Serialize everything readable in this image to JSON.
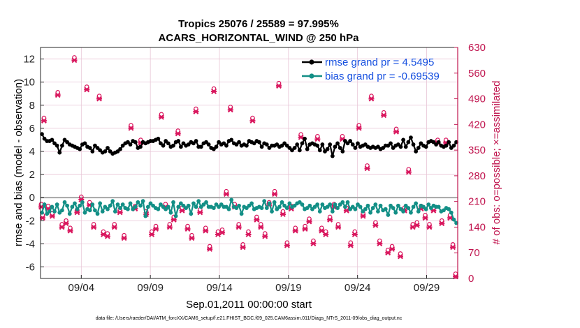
{
  "chart_data": {
    "type": "line",
    "title": "Tropics 25076 / 25589 = 97.995%",
    "subtitle": "ACARS_HORIZONTAL_WIND @ 250 hPa",
    "xlabel": "Sep.01,2011 00:00:00 start",
    "ylabel_left": "rmse and bias (model - observation)",
    "ylabel_right": "# of obs: o=possible; ×=assimilated",
    "footer": "data file: /Users/raeder/DAI/ATM_forcXX/CAM6_setup/f.e21.FHIST_BGC.f09_025.CAM6assim.011/Diags_NTrS_2011-09/obs_diag_output.nc",
    "xlim": [
      0.55,
      30.75
    ],
    "ylim_left": [
      -7,
      13
    ],
    "ylim_right": [
      0,
      630
    ],
    "left_ticks": [
      12,
      10,
      8,
      6,
      4,
      2,
      0,
      -2,
      -4,
      -6
    ],
    "right_ticks": [
      630,
      560,
      490,
      420,
      350,
      280,
      210,
      140,
      70,
      0
    ],
    "x_ticks": [
      {
        "x": 3.5,
        "label": "09/04"
      },
      {
        "x": 8.5,
        "label": "09/09"
      },
      {
        "x": 13.5,
        "label": "09/14"
      },
      {
        "x": 18.5,
        "label": "09/19"
      },
      {
        "x": 23.5,
        "label": "09/24"
      },
      {
        "x": 28.5,
        "label": "09/29"
      }
    ],
    "grid": true,
    "legend_position": "top-right",
    "colors": {
      "rmse": "#000000",
      "bias": "#138f86",
      "obs": "#d9175e",
      "axis_right": "#c0144e",
      "legend_text": "#1650e0",
      "grid": "#e8c5d6",
      "zero_line": "#a6a6a6"
    },
    "series": [
      {
        "name": "rmse grand pr = 4.5495",
        "axis": "left",
        "values": [
          5.5,
          5.1,
          4.9,
          4.9,
          5.0,
          4.7,
          4.5,
          3.9,
          4.5,
          5.0,
          4.8,
          4.6,
          4.5,
          4.4,
          4.3,
          4.2,
          4.6,
          4.7,
          4.4,
          4.3,
          4.0,
          4.5,
          4.3,
          4.1,
          3.9,
          4.0,
          4.3,
          4.0,
          3.8,
          3.9,
          4.0,
          4.2,
          4.5,
          4.7,
          4.8,
          4.6,
          4.9,
          4.8,
          4.3,
          4.4,
          4.8,
          4.7,
          4.8,
          4.9,
          4.9,
          5.0,
          5.1,
          4.7,
          4.5,
          4.9,
          4.7,
          4.4,
          4.5,
          4.8,
          4.9,
          4.4,
          4.7,
          4.5,
          4.6,
          4.8,
          4.7,
          4.9,
          4.4,
          4.4,
          4.7,
          4.8,
          4.6,
          4.3,
          4.2,
          4.4,
          4.8,
          4.6,
          4.7,
          4.5,
          4.9,
          5.0,
          4.7,
          4.6,
          4.8,
          4.5,
          4.6,
          4.5,
          4.9,
          4.8,
          4.7,
          4.9,
          4.8,
          4.4,
          4.7,
          4.6,
          4.3,
          4.5,
          4.5,
          4.6,
          4.4,
          4.5,
          4.7,
          4.5,
          4.3,
          4.1,
          4.3,
          4.6,
          4.1,
          4.7,
          5.1,
          4.2,
          4.6,
          4.7,
          4.6,
          4.5,
          4.1,
          4.6,
          4.0,
          4.2,
          4.6,
          3.6,
          4.4,
          4.7,
          4.3,
          4.0,
          4.9,
          4.7,
          4.9,
          4.6,
          4.3,
          4.7,
          4.4,
          4.5,
          4.6,
          4.4,
          4.3,
          4.4,
          4.3,
          4.4,
          4.2,
          4.3,
          4.5,
          4.5,
          4.7,
          4.3,
          4.5,
          4.6,
          4.4,
          5.0,
          4.4,
          4.8,
          5.2,
          4.6,
          4.0,
          4.3,
          4.7,
          4.5,
          4.4,
          4.8,
          4.9,
          4.8,
          4.6,
          4.8,
          4.5,
          4.4,
          4.5,
          4.8,
          4.3,
          4.5,
          4.8
        ]
      },
      {
        "name": "bias grand pr = -0.69539",
        "axis": "left",
        "values": [
          -1.3,
          -0.6,
          -1.4,
          -1.2,
          -0.8,
          -1.2,
          -0.6,
          -1.3,
          -1.1,
          -0.4,
          -0.7,
          -1.4,
          -0.8,
          -0.5,
          -1.0,
          -0.7,
          -0.4,
          -1.3,
          -1.0,
          -1.1,
          -0.6,
          -1.1,
          -1.4,
          -0.5,
          -1.2,
          -0.8,
          -1.0,
          -0.7,
          -0.3,
          -1.2,
          -0.6,
          -0.9,
          -0.6,
          -0.9,
          -1.0,
          -0.5,
          -1.0,
          -0.8,
          -0.4,
          -0.7,
          -0.3,
          -1.6,
          -0.8,
          -0.5,
          -0.7,
          -0.9,
          -1.0,
          -0.6,
          -0.8,
          -1.0,
          -0.8,
          -1.3,
          -0.4,
          -1.6,
          -0.8,
          -0.5,
          -0.7,
          -0.9,
          -0.7,
          -1.4,
          -0.5,
          -0.8,
          -0.3,
          -0.8,
          -0.6,
          -0.4,
          -0.8,
          -0.8,
          -0.9,
          -0.6,
          -0.8,
          -0.6,
          -0.8,
          -0.8,
          -1.0,
          -0.2,
          -0.8,
          -0.9,
          -0.7,
          -1.4,
          -0.8,
          -0.9,
          -0.7,
          -0.5,
          -1.0,
          -0.9,
          -0.8,
          -0.9,
          -0.3,
          -0.9,
          -0.5,
          -1.2,
          -0.4,
          -1.0,
          -0.8,
          -0.4,
          -0.7,
          -0.9,
          -0.5,
          -0.8,
          -0.7,
          -0.5,
          -0.4,
          -0.6,
          -1.0,
          -0.9,
          -0.7,
          -1.0,
          -0.8,
          -0.6,
          -1.2,
          -0.6,
          -0.9,
          -0.8,
          -0.6,
          -1.2,
          -0.6,
          -0.9,
          -0.6,
          -0.4,
          -0.8,
          -0.4,
          -1.0,
          -0.8,
          -1.0,
          -0.6,
          -0.8,
          -1.2,
          -1.0,
          -0.7,
          -1.3,
          -0.9,
          -0.6,
          -1.2,
          -0.7,
          -1.1,
          -1.0,
          -1.5,
          -0.7,
          -0.9,
          -1.3,
          -0.7,
          -1.0,
          -1.2,
          -0.7,
          -0.9,
          -1.3,
          -0.8,
          -0.5,
          -1.2,
          -0.7,
          -0.8,
          -1.0,
          -0.6,
          -0.9,
          -0.7,
          -0.8,
          -0.8,
          -1.2,
          -1.1,
          -0.9,
          -1.0,
          -1.3,
          -1.9,
          -2.2
        ]
      }
    ],
    "obs_possible": [
      {
        "x": 0.6,
        "y": 195
      },
      {
        "x": 0.7,
        "y": 165
      },
      {
        "x": 0.8,
        "y": 430
      },
      {
        "x": 1.1,
        "y": 190
      },
      {
        "x": 1.4,
        "y": 170
      },
      {
        "x": 1.8,
        "y": 500
      },
      {
        "x": 2.1,
        "y": 140
      },
      {
        "x": 2.4,
        "y": 150
      },
      {
        "x": 2.7,
        "y": 130
      },
      {
        "x": 3.0,
        "y": 595
      },
      {
        "x": 3.2,
        "y": 180
      },
      {
        "x": 3.5,
        "y": 215
      },
      {
        "x": 3.9,
        "y": 515
      },
      {
        "x": 4.1,
        "y": 200
      },
      {
        "x": 4.4,
        "y": 140
      },
      {
        "x": 4.8,
        "y": 490
      },
      {
        "x": 5.1,
        "y": 120
      },
      {
        "x": 5.4,
        "y": 115
      },
      {
        "x": 5.9,
        "y": 140
      },
      {
        "x": 6.3,
        "y": 180
      },
      {
        "x": 6.6,
        "y": 110
      },
      {
        "x": 7.1,
        "y": 410
      },
      {
        "x": 7.4,
        "y": 190
      },
      {
        "x": 7.8,
        "y": 370
      },
      {
        "x": 8.2,
        "y": 175
      },
      {
        "x": 8.6,
        "y": 120
      },
      {
        "x": 8.9,
        "y": 135
      },
      {
        "x": 9.3,
        "y": 440
      },
      {
        "x": 9.6,
        "y": 195
      },
      {
        "x": 9.9,
        "y": 140
      },
      {
        "x": 10.2,
        "y": 160
      },
      {
        "x": 10.5,
        "y": 395
      },
      {
        "x": 10.8,
        "y": 185
      },
      {
        "x": 11.2,
        "y": 135
      },
      {
        "x": 11.5,
        "y": 110
      },
      {
        "x": 11.8,
        "y": 455
      },
      {
        "x": 12.1,
        "y": 180
      },
      {
        "x": 12.5,
        "y": 130
      },
      {
        "x": 12.8,
        "y": 80
      },
      {
        "x": 13.1,
        "y": 510
      },
      {
        "x": 13.4,
        "y": 120
      },
      {
        "x": 13.7,
        "y": 125
      },
      {
        "x": 14.0,
        "y": 230
      },
      {
        "x": 14.3,
        "y": 460
      },
      {
        "x": 14.6,
        "y": 195
      },
      {
        "x": 14.9,
        "y": 140
      },
      {
        "x": 15.2,
        "y": 85
      },
      {
        "x": 15.6,
        "y": 120
      },
      {
        "x": 15.9,
        "y": 430
      },
      {
        "x": 16.2,
        "y": 160
      },
      {
        "x": 16.5,
        "y": 140
      },
      {
        "x": 16.8,
        "y": 115
      },
      {
        "x": 17.1,
        "y": 200
      },
      {
        "x": 17.5,
        "y": 230
      },
      {
        "x": 17.8,
        "y": 525
      },
      {
        "x": 18.1,
        "y": 175
      },
      {
        "x": 18.4,
        "y": 90
      },
      {
        "x": 18.7,
        "y": 190
      },
      {
        "x": 19.0,
        "y": 130
      },
      {
        "x": 19.4,
        "y": 385
      },
      {
        "x": 19.7,
        "y": 135
      },
      {
        "x": 20.0,
        "y": 155
      },
      {
        "x": 20.3,
        "y": 95
      },
      {
        "x": 20.6,
        "y": 380
      },
      {
        "x": 20.9,
        "y": 130
      },
      {
        "x": 21.2,
        "y": 120
      },
      {
        "x": 21.5,
        "y": 160
      },
      {
        "x": 21.8,
        "y": 195
      },
      {
        "x": 22.1,
        "y": 140
      },
      {
        "x": 22.4,
        "y": 380
      },
      {
        "x": 22.7,
        "y": 185
      },
      {
        "x": 23.0,
        "y": 90
      },
      {
        "x": 23.3,
        "y": 120
      },
      {
        "x": 23.6,
        "y": 410
      },
      {
        "x": 23.9,
        "y": 170
      },
      {
        "x": 24.2,
        "y": 300
      },
      {
        "x": 24.5,
        "y": 490
      },
      {
        "x": 24.8,
        "y": 145
      },
      {
        "x": 25.1,
        "y": 95
      },
      {
        "x": 25.4,
        "y": 445
      },
      {
        "x": 25.7,
        "y": 70
      },
      {
        "x": 26.0,
        "y": 80
      },
      {
        "x": 26.3,
        "y": 400
      },
      {
        "x": 26.6,
        "y": 60
      },
      {
        "x": 26.9,
        "y": 185
      },
      {
        "x": 27.2,
        "y": 290
      },
      {
        "x": 27.5,
        "y": 140
      },
      {
        "x": 27.8,
        "y": 145
      },
      {
        "x": 28.1,
        "y": 190
      },
      {
        "x": 28.4,
        "y": 165
      },
      {
        "x": 28.7,
        "y": 140
      },
      {
        "x": 29.0,
        "y": 185
      },
      {
        "x": 29.3,
        "y": 370
      },
      {
        "x": 29.6,
        "y": 150
      },
      {
        "x": 29.9,
        "y": 370
      },
      {
        "x": 30.2,
        "y": 165
      },
      {
        "x": 30.4,
        "y": 85
      },
      {
        "x": 30.6,
        "y": 5
      }
    ]
  }
}
